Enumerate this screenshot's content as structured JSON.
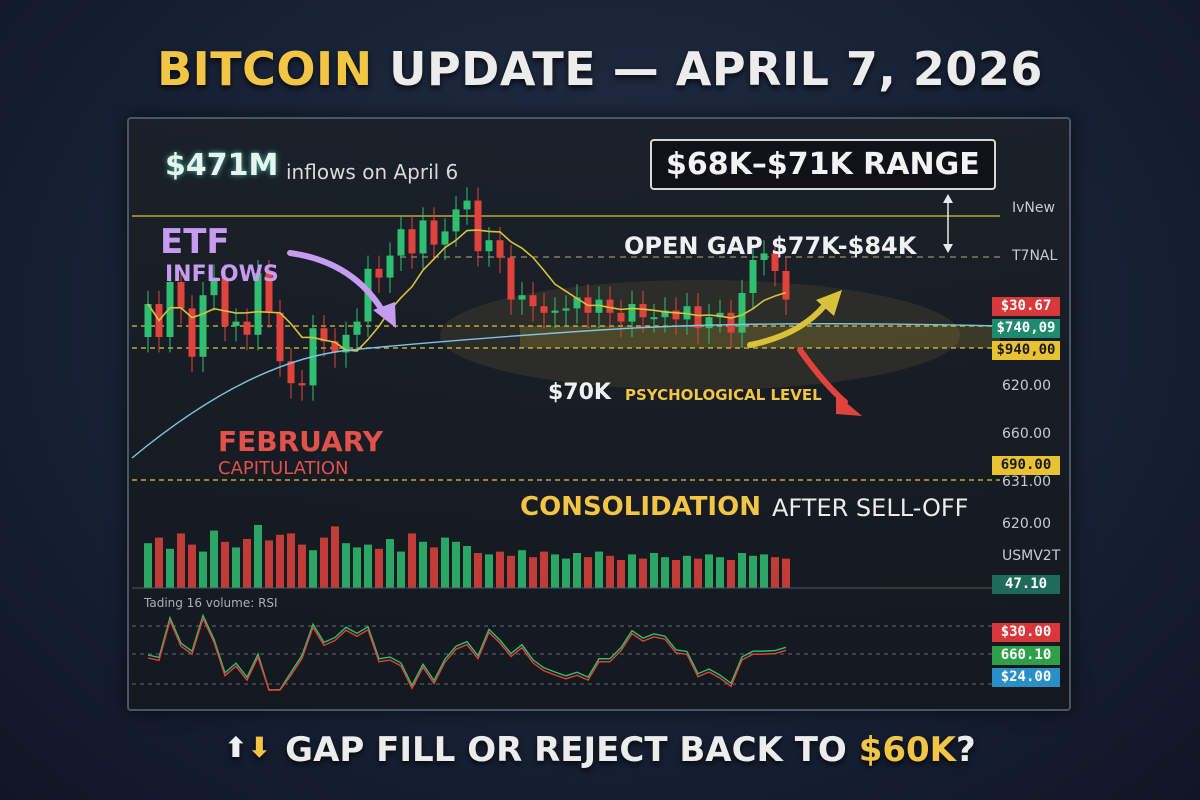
{
  "header": {
    "title_highlight": "BITCOIN",
    "title_rest": " UPDATE — APRIL 7, 2026"
  },
  "annotations": {
    "inflow_amount": "$471M",
    "inflow_text": "inflows on April 6",
    "range": "$68K–$71K RANGE",
    "etf_title": "ETF",
    "etf_sub": "INFLOWS",
    "open_gap": "OPEN GAP $77K-$84K",
    "psych_level": "$70K",
    "psych_text": "PSYCHOLOGICAL LEVEL",
    "february": "FEBRUARY",
    "february_sub": "CAPITULATION",
    "consolidation": "CONSOLIDATION",
    "consolidation_sub": "AFTER SELL-OFF",
    "rsi_label": "Tading 16 volume: RSI"
  },
  "axis": {
    "top_label_1": "IvNew",
    "top_label_2": "T7NAL",
    "ticks": [
      "620.00",
      "660.00",
      "631.00",
      "620.00"
    ],
    "vol_label": "USMV2T"
  },
  "price_tags": [
    {
      "text": "$30.67",
      "bg": "#d9383a",
      "fg": "#ffffff"
    },
    {
      "text": "$740,09",
      "bg": "#1e8a6e",
      "fg": "#ffffff"
    },
    {
      "text": "$940,00",
      "bg": "#e8c233",
      "fg": "#1b1b1b"
    },
    {
      "text": "690.00",
      "bg": "#e8c233",
      "fg": "#1b1b1b"
    },
    {
      "text": "47.10",
      "bg": "#1e6b5c",
      "fg": "#ffffff"
    },
    {
      "text": "$30.00",
      "bg": "#d9383a",
      "fg": "#ffffff"
    },
    {
      "text": "660.10",
      "bg": "#2ea04a",
      "fg": "#ffffff"
    },
    {
      "text": "$24.00",
      "bg": "#2a8fc7",
      "fg": "#ffffff"
    }
  ],
  "footer": {
    "text": "GAP FILL OR REJECT BACK TO ",
    "highlight": "$60K",
    "end": "?"
  },
  "colors": {
    "bull": "#2fbf71",
    "bear": "#e0433b",
    "accent": "#f2c545",
    "ma_yellow": "#d8c23a",
    "ma_blue": "#7ec3e3"
  },
  "chart_data": {
    "type": "candlestick",
    "title": "",
    "close": [
      72,
      70.5,
      73,
      71.8,
      69.6,
      72.4,
      73.2,
      71,
      71.2,
      70.6,
      73.4,
      71.6,
      69.4,
      68.4,
      68.3,
      70.9,
      70.3,
      69.8,
      70.6,
      71.2,
      73.6,
      73.2,
      74.2,
      75.4,
      74.3,
      75.8,
      74.7,
      75.3,
      76.3,
      76.7,
      74.4,
      74.9,
      74.1,
      72.2,
      72.4,
      71.9,
      71.6,
      71.7,
      71.8,
      72.3,
      71.6,
      72.2,
      71.6,
      71.2,
      72,
      71.4,
      71.4,
      71.7,
      71.3,
      71.9,
      70.9,
      71.4,
      71.6,
      70.7,
      72.5,
      74,
      74.3,
      73.5,
      72.2
    ],
    "volume": [
      3.2,
      3.6,
      2.8,
      3.9,
      3.1,
      2.6,
      4.1,
      3.3,
      2.9,
      3.5,
      4.5,
      3.4,
      3.8,
      3.9,
      3.1,
      2.7,
      3.6,
      4.4,
      3.2,
      2.9,
      3.1,
      2.8,
      3.5,
      2.6,
      3.9,
      3.3,
      2.9,
      3.6,
      3.3,
      3.0,
      2.5,
      2.4,
      2.6,
      2.3,
      2.7,
      2.2,
      2.6,
      2.4,
      2.1,
      2.5,
      2.2,
      2.6,
      2.3,
      2.0,
      2.4,
      2.1,
      2.5,
      2.2,
      2.0,
      2.3,
      2.1,
      2.4,
      2.2,
      2.0,
      2.5,
      2.3,
      2.4,
      2.2,
      2.1
    ],
    "levels": [
      {
        "name": "gap_top",
        "value": 76.0
      },
      {
        "name": "range_top",
        "value": 71.0
      },
      {
        "name": "range_bottom",
        "value": 70.0
      },
      {
        "name": "capitulation",
        "value": 64.0
      }
    ],
    "xlabel": "",
    "ylabel": ""
  }
}
